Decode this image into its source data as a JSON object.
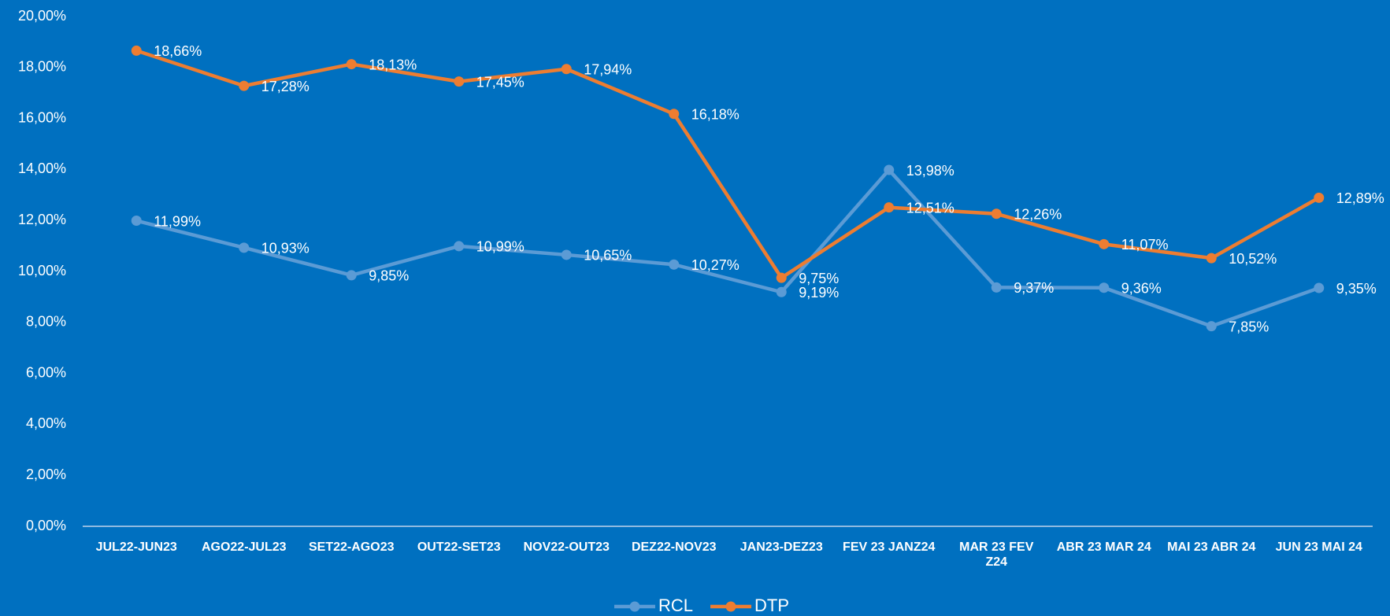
{
  "chart_data": {
    "type": "line",
    "categories": [
      "JUL22-JUN23",
      "AGO22-JUL23",
      "SET22-AGO23",
      "OUT22-SET23",
      "NOV22-OUT23",
      "DEZ22-NOV23",
      "JAN23-DEZ23",
      "FEV 23 JANZ24",
      "MAR 23 FEV Z24",
      "ABR 23 MAR 24",
      "MAI 23 ABR 24",
      "JUN 23 MAI 24"
    ],
    "series": [
      {
        "name": "RCL",
        "color": "#5b9bd5",
        "values": [
          11.99,
          10.93,
          9.85,
          10.99,
          10.65,
          10.27,
          9.19,
          13.98,
          9.37,
          9.36,
          7.85,
          9.35
        ],
        "value_labels": [
          "11,99%",
          "10,93%",
          "9,85%",
          "10,99%",
          "10,65%",
          "10,27%",
          "9,19%",
          "13,98%",
          "9,37%",
          "9,36%",
          "7,85%",
          "9,35%"
        ]
      },
      {
        "name": "DTP",
        "color": "#ed7d31",
        "values": [
          18.66,
          17.28,
          18.13,
          17.45,
          17.94,
          16.18,
          9.75,
          12.51,
          12.26,
          11.07,
          10.52,
          12.89
        ],
        "value_labels": [
          "18,66%",
          "17,28%",
          "18,13%",
          "17,45%",
          "17,94%",
          "16,18%",
          "9,75%",
          "12,51%",
          "12,26%",
          "11,07%",
          "10,52%",
          "12,89%"
        ]
      }
    ],
    "ylim": [
      0,
      20
    ],
    "yticks": [
      {
        "value": 0,
        "label": "0,00%"
      },
      {
        "value": 2,
        "label": "2,00%"
      },
      {
        "value": 4,
        "label": "4,00%"
      },
      {
        "value": 6,
        "label": "6,00%"
      },
      {
        "value": 8,
        "label": "8,00%"
      },
      {
        "value": 10,
        "label": "10,00%"
      },
      {
        "value": 12,
        "label": "12,00%"
      },
      {
        "value": 14,
        "label": "14,00%"
      },
      {
        "value": 16,
        "label": "16,00%"
      },
      {
        "value": 18,
        "label": "18,00%"
      },
      {
        "value": 20,
        "label": "20,00%"
      }
    ],
    "grid": false,
    "legend": "bottom"
  }
}
